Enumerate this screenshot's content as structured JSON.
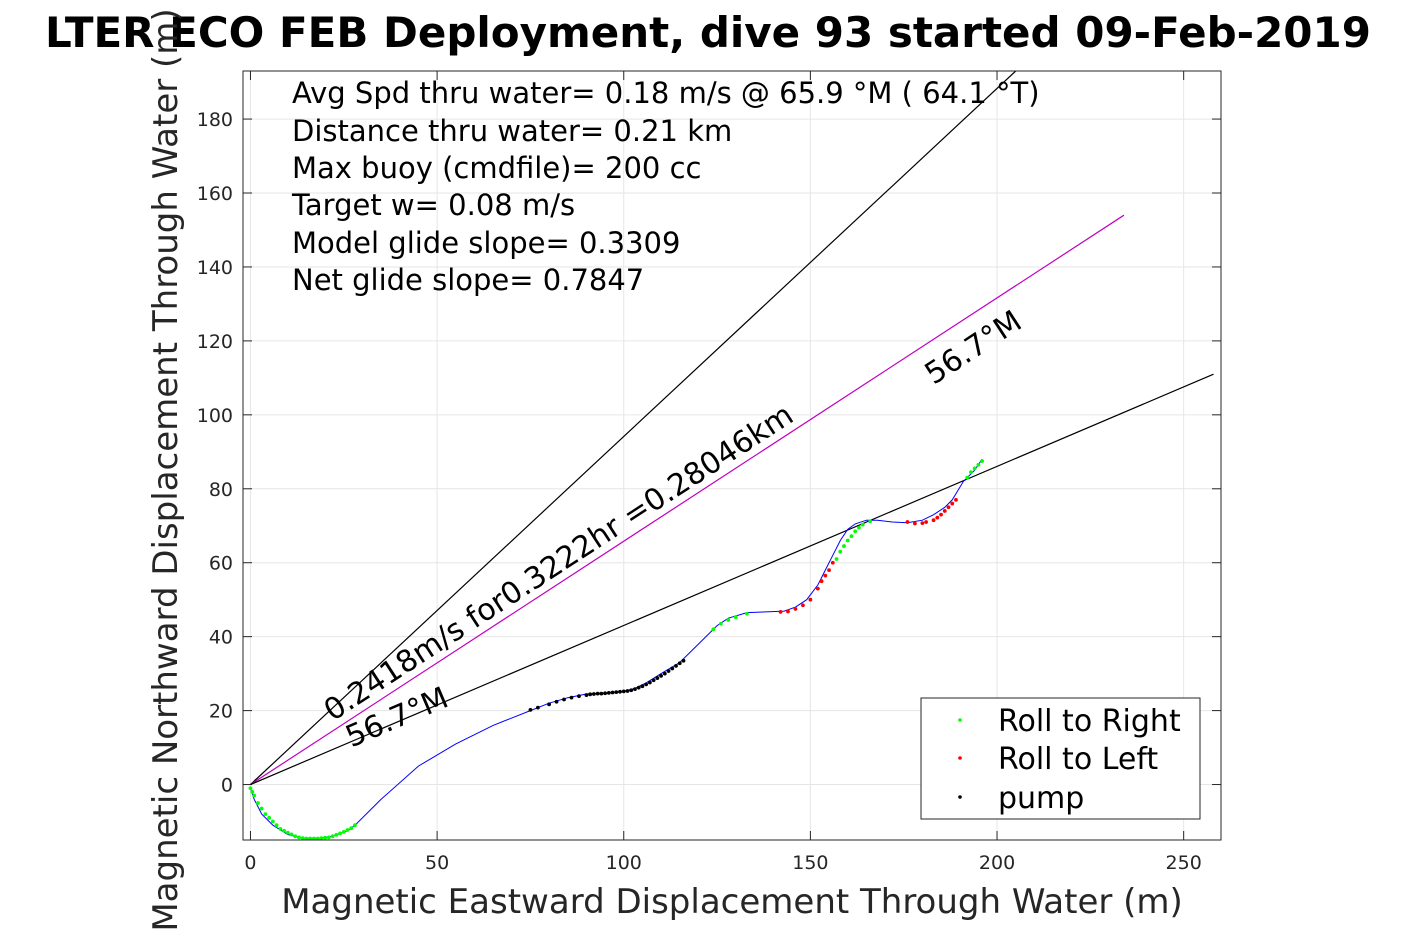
{
  "chart_data": {
    "type": "line",
    "title": "LTER ECO FEB Deployment, dive 93 started 09-Feb-2019",
    "xlabel": "Magnetic Eastward Displacement Through Water (m)",
    "ylabel": "Magnetic Northward Displacement Through Water (m)",
    "xlim": [
      -2,
      260
    ],
    "ylim": [
      -15,
      193
    ],
    "xticks": [
      0,
      50,
      100,
      150,
      200,
      250
    ],
    "yticks": [
      0,
      20,
      40,
      60,
      80,
      100,
      120,
      140,
      160,
      180
    ],
    "grid": true,
    "info_lines": [
      "Avg Spd thru water=  0.18 m/s @  65.9 °M ( 64.1 °T)",
      "Distance thru water=  0.21 km",
      "Max buoy (cmdfile)= 200 cc",
      "Target w= 0.08 m/s",
      "Model glide slope= 0.3309",
      "Net glide slope= 0.7847"
    ],
    "annotations": {
      "speed": "0.2418m/s for0.3222hr =0.28046km",
      "heading_upper": "56.7°M",
      "heading_lower": "56.7°M"
    },
    "reference_lines": [
      {
        "name": "upper-bound",
        "color": "#000000",
        "x": [
          0,
          205
        ],
        "y": [
          0,
          193
        ]
      },
      {
        "name": "heading",
        "color": "#c000c0",
        "x": [
          0,
          234
        ],
        "y": [
          0,
          154
        ]
      },
      {
        "name": "lower-bound",
        "color": "#000000",
        "x": [
          0,
          258
        ],
        "y": [
          0,
          111
        ]
      }
    ],
    "track": {
      "name": "track",
      "color": "#0000ff",
      "x": [
        0,
        1,
        3,
        6,
        10,
        14,
        18,
        22,
        26,
        28,
        35,
        45,
        55,
        65,
        75,
        80,
        85,
        90,
        95,
        100,
        103,
        106,
        110,
        115,
        120,
        125,
        128,
        133,
        138,
        143,
        146,
        149,
        152,
        154,
        156,
        158,
        160,
        162,
        165,
        168,
        172,
        176,
        180,
        183,
        186,
        188,
        191,
        194,
        196
      ],
      "y": [
        -1,
        -4,
        -8,
        -11,
        -13.5,
        -14.5,
        -14.5,
        -14,
        -12.5,
        -11,
        -4,
        5,
        11,
        16,
        20,
        22,
        23.5,
        24.5,
        24.8,
        25.2,
        26,
        27.5,
        30,
        33,
        38,
        43,
        45,
        46.5,
        46.7,
        46.9,
        48,
        50,
        54,
        58,
        62,
        66,
        69,
        70.5,
        71.5,
        71.5,
        71,
        70.8,
        71.5,
        73,
        75,
        77,
        82,
        85,
        88
      ]
    },
    "markers": {
      "roll_right": {
        "name": "Roll to Right",
        "color": "#00ff00",
        "x": [
          0,
          0.5,
          1,
          2,
          3,
          4,
          5,
          6,
          7,
          8,
          9,
          10,
          11,
          12,
          13,
          14,
          15,
          16,
          17,
          18,
          19,
          20,
          21,
          22,
          23,
          24,
          25,
          26,
          27,
          28,
          124,
          126,
          128,
          130,
          133,
          157,
          158,
          159,
          160,
          161,
          162,
          163,
          164,
          166,
          192,
          193,
          194,
          195,
          196
        ],
        "y": [
          -1,
          -2,
          -3,
          -5,
          -6.5,
          -8,
          -9,
          -10,
          -11,
          -12,
          -12.5,
          -13,
          -13.5,
          -14,
          -14.3,
          -14.5,
          -14.6,
          -14.6,
          -14.6,
          -14.6,
          -14.5,
          -14.4,
          -14.3,
          -14,
          -13.6,
          -13.2,
          -12.8,
          -12.3,
          -11.8,
          -11,
          42,
          43.5,
          44.5,
          45.3,
          46.2,
          61,
          63,
          64.5,
          66,
          67.2,
          68.5,
          69.5,
          70.3,
          71.2,
          83,
          84.5,
          85.5,
          86.5,
          87.5
        ]
      },
      "roll_left": {
        "name": "Roll to Left",
        "color": "#ff0000",
        "x": [
          142,
          144,
          146,
          148,
          150,
          152,
          153,
          154,
          155,
          156,
          176,
          178,
          180,
          181,
          183,
          184,
          185,
          186,
          187,
          188,
          189
        ],
        "y": [
          46.7,
          46.8,
          47.5,
          48.5,
          50,
          53,
          55,
          56.5,
          58,
          60,
          71,
          70.6,
          70.7,
          71,
          71.5,
          72.2,
          73,
          74,
          75,
          76,
          77
        ]
      },
      "pump": {
        "name": "pump",
        "color": "#000000",
        "x": [
          75,
          77,
          80,
          82,
          84,
          86,
          88,
          90,
          91,
          92,
          93,
          94,
          95,
          96,
          97,
          98,
          99,
          100,
          101,
          102,
          103,
          104,
          105,
          106,
          107,
          108,
          109,
          110,
          111,
          112,
          113,
          114,
          115,
          116
        ],
        "y": [
          20.2,
          20.8,
          21.7,
          22.4,
          23,
          23.5,
          23.9,
          24.2,
          24.4,
          24.5,
          24.6,
          24.6,
          24.7,
          24.8,
          24.9,
          25,
          25.1,
          25.2,
          25.3,
          25.5,
          25.8,
          26.2,
          26.6,
          27.1,
          27.6,
          28.2,
          28.8,
          29.4,
          30,
          30.7,
          31.4,
          32.1,
          32.8,
          33.5
        ]
      }
    },
    "legend": {
      "position": "bottom-right",
      "entries": [
        "Roll to Right",
        "Roll to Left",
        "pump"
      ]
    }
  }
}
